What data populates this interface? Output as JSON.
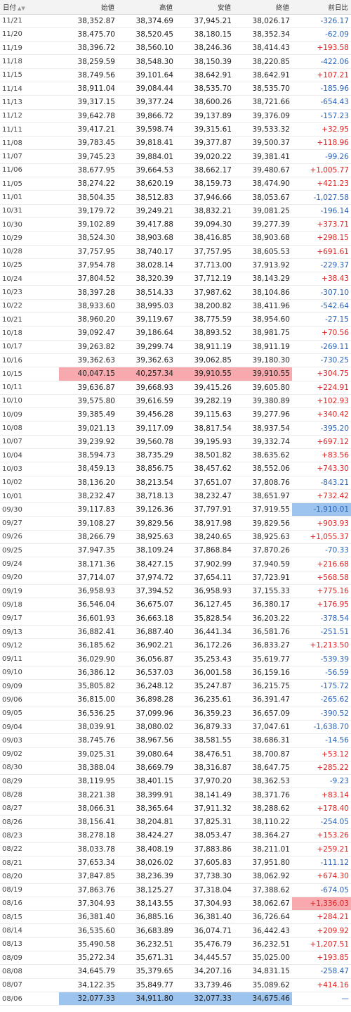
{
  "columns": [
    "日付",
    "始値",
    "高値",
    "安値",
    "終値",
    "前日比"
  ],
  "sort_icon": "sort-arrows-icon",
  "highlight_colors": {
    "high": "#f7a9ad",
    "low": "#9cc4ee"
  },
  "rows": [
    {
      "date": "11/21",
      "open": "38,352.87",
      "high": "38,374.69",
      "low": "37,945.21",
      "close": "38,026.17",
      "change": "-326.17"
    },
    {
      "date": "11/20",
      "open": "38,475.70",
      "high": "38,520.45",
      "low": "38,180.15",
      "close": "38,352.34",
      "change": "-62.09"
    },
    {
      "date": "11/19",
      "open": "38,396.72",
      "high": "38,560.10",
      "low": "38,246.36",
      "close": "38,414.43",
      "change": "+193.58"
    },
    {
      "date": "11/18",
      "open": "38,259.59",
      "high": "38,548.30",
      "low": "38,150.39",
      "close": "38,220.85",
      "change": "-422.06"
    },
    {
      "date": "11/15",
      "open": "38,749.56",
      "high": "39,101.64",
      "low": "38,642.91",
      "close": "38,642.91",
      "change": "+107.21"
    },
    {
      "date": "11/14",
      "open": "38,911.04",
      "high": "39,084.44",
      "low": "38,535.70",
      "close": "38,535.70",
      "change": "-185.96"
    },
    {
      "date": "11/13",
      "open": "39,317.15",
      "high": "39,377.24",
      "low": "38,600.26",
      "close": "38,721.66",
      "change": "-654.43"
    },
    {
      "date": "11/12",
      "open": "39,642.78",
      "high": "39,866.72",
      "low": "39,137.89",
      "close": "39,376.09",
      "change": "-157.23"
    },
    {
      "date": "11/11",
      "open": "39,417.21",
      "high": "39,598.74",
      "low": "39,315.61",
      "close": "39,533.32",
      "change": "+32.95"
    },
    {
      "date": "11/08",
      "open": "39,783.45",
      "high": "39,818.41",
      "low": "39,377.87",
      "close": "39,500.37",
      "change": "+118.96"
    },
    {
      "date": "11/07",
      "open": "39,745.23",
      "high": "39,884.01",
      "low": "39,020.22",
      "close": "39,381.41",
      "change": "-99.26"
    },
    {
      "date": "11/06",
      "open": "38,677.95",
      "high": "39,664.53",
      "low": "38,662.17",
      "close": "39,480.67",
      "change": "+1,005.77"
    },
    {
      "date": "11/05",
      "open": "38,274.22",
      "high": "38,620.19",
      "low": "38,159.73",
      "close": "38,474.90",
      "change": "+421.23"
    },
    {
      "date": "11/01",
      "open": "38,504.35",
      "high": "38,512.83",
      "low": "37,946.66",
      "close": "38,053.67",
      "change": "-1,027.58"
    },
    {
      "date": "10/31",
      "open": "39,179.72",
      "high": "39,249.21",
      "low": "38,832.21",
      "close": "39,081.25",
      "change": "-196.14"
    },
    {
      "date": "10/30",
      "open": "39,102.89",
      "high": "39,417.88",
      "low": "39,094.30",
      "close": "39,277.39",
      "change": "+373.71"
    },
    {
      "date": "10/29",
      "open": "38,524.30",
      "high": "38,903.68",
      "low": "38,416.85",
      "close": "38,903.68",
      "change": "+298.15"
    },
    {
      "date": "10/28",
      "open": "37,757.95",
      "high": "38,740.17",
      "low": "37,757.95",
      "close": "38,605.53",
      "change": "+691.61"
    },
    {
      "date": "10/25",
      "open": "37,954.78",
      "high": "38,028.14",
      "low": "37,713.00",
      "close": "37,913.92",
      "change": "-229.37"
    },
    {
      "date": "10/24",
      "open": "37,804.52",
      "high": "38,320.39",
      "low": "37,712.19",
      "close": "38,143.29",
      "change": "+38.43"
    },
    {
      "date": "10/23",
      "open": "38,397.28",
      "high": "38,514.33",
      "low": "37,987.62",
      "close": "38,104.86",
      "change": "-307.10"
    },
    {
      "date": "10/22",
      "open": "38,933.60",
      "high": "38,995.03",
      "low": "38,200.82",
      "close": "38,411.96",
      "change": "-542.64"
    },
    {
      "date": "10/21",
      "open": "38,960.20",
      "high": "39,119.67",
      "low": "38,775.59",
      "close": "38,954.60",
      "change": "-27.15"
    },
    {
      "date": "10/18",
      "open": "39,092.47",
      "high": "39,186.64",
      "low": "38,893.52",
      "close": "38,981.75",
      "change": "+70.56"
    },
    {
      "date": "10/17",
      "open": "39,263.82",
      "high": "39,299.74",
      "low": "38,911.19",
      "close": "38,911.19",
      "change": "-269.11"
    },
    {
      "date": "10/16",
      "open": "39,362.63",
      "high": "39,362.63",
      "low": "39,062.85",
      "close": "39,180.30",
      "change": "-730.25"
    },
    {
      "date": "10/15",
      "open": "40,047.15",
      "high": "40,257.34",
      "low": "39,910.55",
      "close": "39,910.55",
      "change": "+304.75",
      "mark_ohlc": "high"
    },
    {
      "date": "10/11",
      "open": "39,636.87",
      "high": "39,668.93",
      "low": "39,415.26",
      "close": "39,605.80",
      "change": "+224.91"
    },
    {
      "date": "10/10",
      "open": "39,575.80",
      "high": "39,616.59",
      "low": "39,282.19",
      "close": "39,380.89",
      "change": "+102.93"
    },
    {
      "date": "10/09",
      "open": "39,385.49",
      "high": "39,456.28",
      "low": "39,115.63",
      "close": "39,277.96",
      "change": "+340.42"
    },
    {
      "date": "10/08",
      "open": "39,021.13",
      "high": "39,117.09",
      "low": "38,817.54",
      "close": "38,937.54",
      "change": "-395.20"
    },
    {
      "date": "10/07",
      "open": "39,239.92",
      "high": "39,560.78",
      "low": "39,195.93",
      "close": "39,332.74",
      "change": "+697.12"
    },
    {
      "date": "10/04",
      "open": "38,594.73",
      "high": "38,735.29",
      "low": "38,501.82",
      "close": "38,635.62",
      "change": "+83.56"
    },
    {
      "date": "10/03",
      "open": "38,459.13",
      "high": "38,856.75",
      "low": "38,457.62",
      "close": "38,552.06",
      "change": "+743.30"
    },
    {
      "date": "10/02",
      "open": "38,136.20",
      "high": "38,213.54",
      "low": "37,651.07",
      "close": "37,808.76",
      "change": "-843.21"
    },
    {
      "date": "10/01",
      "open": "38,232.47",
      "high": "38,718.13",
      "low": "38,232.47",
      "close": "38,651.97",
      "change": "+732.42"
    },
    {
      "date": "09/30",
      "open": "39,117.83",
      "high": "39,126.36",
      "low": "37,797.91",
      "close": "37,919.55",
      "change": "-1,910.01",
      "mark_change": "low"
    },
    {
      "date": "09/27",
      "open": "39,108.27",
      "high": "39,829.56",
      "low": "38,917.98",
      "close": "39,829.56",
      "change": "+903.93"
    },
    {
      "date": "09/26",
      "open": "38,266.79",
      "high": "38,925.63",
      "low": "38,240.65",
      "close": "38,925.63",
      "change": "+1,055.37"
    },
    {
      "date": "09/25",
      "open": "37,947.35",
      "high": "38,109.24",
      "low": "37,868.84",
      "close": "37,870.26",
      "change": "-70.33"
    },
    {
      "date": "09/24",
      "open": "38,171.36",
      "high": "38,427.15",
      "low": "37,902.99",
      "close": "37,940.59",
      "change": "+216.68"
    },
    {
      "date": "09/20",
      "open": "37,714.07",
      "high": "37,974.72",
      "low": "37,654.11",
      "close": "37,723.91",
      "change": "+568.58"
    },
    {
      "date": "09/19",
      "open": "36,958.93",
      "high": "37,394.52",
      "low": "36,958.93",
      "close": "37,155.33",
      "change": "+775.16"
    },
    {
      "date": "09/18",
      "open": "36,546.04",
      "high": "36,675.07",
      "low": "36,127.45",
      "close": "36,380.17",
      "change": "+176.95"
    },
    {
      "date": "09/17",
      "open": "36,601.93",
      "high": "36,663.18",
      "low": "35,828.54",
      "close": "36,203.22",
      "change": "-378.54"
    },
    {
      "date": "09/13",
      "open": "36,882.41",
      "high": "36,887.40",
      "low": "36,441.34",
      "close": "36,581.76",
      "change": "-251.51"
    },
    {
      "date": "09/12",
      "open": "36,185.62",
      "high": "36,902.21",
      "low": "36,172.26",
      "close": "36,833.27",
      "change": "+1,213.50"
    },
    {
      "date": "09/11",
      "open": "36,029.90",
      "high": "36,056.87",
      "low": "35,253.43",
      "close": "35,619.77",
      "change": "-539.39"
    },
    {
      "date": "09/10",
      "open": "36,386.12",
      "high": "36,537.03",
      "low": "36,001.58",
      "close": "36,159.16",
      "change": "-56.59"
    },
    {
      "date": "09/09",
      "open": "35,805.82",
      "high": "36,248.12",
      "low": "35,247.87",
      "close": "36,215.75",
      "change": "-175.72"
    },
    {
      "date": "09/06",
      "open": "36,815.00",
      "high": "36,898.28",
      "low": "36,235.61",
      "close": "36,391.47",
      "change": "-265.62"
    },
    {
      "date": "09/05",
      "open": "36,536.25",
      "high": "37,099.96",
      "low": "36,359.23",
      "close": "36,657.09",
      "change": "-390.52"
    },
    {
      "date": "09/04",
      "open": "38,039.91",
      "high": "38,080.02",
      "low": "36,879.33",
      "close": "37,047.61",
      "change": "-1,638.70"
    },
    {
      "date": "09/03",
      "open": "38,745.76",
      "high": "38,967.56",
      "low": "38,581.55",
      "close": "38,686.31",
      "change": "-14.56"
    },
    {
      "date": "09/02",
      "open": "39,025.31",
      "high": "39,080.64",
      "low": "38,476.51",
      "close": "38,700.87",
      "change": "+53.12"
    },
    {
      "date": "08/30",
      "open": "38,388.04",
      "high": "38,669.79",
      "low": "38,316.87",
      "close": "38,647.75",
      "change": "+285.22"
    },
    {
      "date": "08/29",
      "open": "38,119.95",
      "high": "38,401.15",
      "low": "37,970.20",
      "close": "38,362.53",
      "change": "-9.23"
    },
    {
      "date": "08/28",
      "open": "38,221.38",
      "high": "38,399.91",
      "low": "38,141.49",
      "close": "38,371.76",
      "change": "+83.14"
    },
    {
      "date": "08/27",
      "open": "38,066.31",
      "high": "38,365.64",
      "low": "37,911.32",
      "close": "38,288.62",
      "change": "+178.40"
    },
    {
      "date": "08/26",
      "open": "38,156.41",
      "high": "38,204.81",
      "low": "37,825.31",
      "close": "38,110.22",
      "change": "-254.05"
    },
    {
      "date": "08/23",
      "open": "38,278.18",
      "high": "38,424.27",
      "low": "38,053.47",
      "close": "38,364.27",
      "change": "+153.26"
    },
    {
      "date": "08/22",
      "open": "38,033.78",
      "high": "38,408.19",
      "low": "37,883.86",
      "close": "38,211.01",
      "change": "+259.21"
    },
    {
      "date": "08/21",
      "open": "37,653.34",
      "high": "38,026.02",
      "low": "37,605.83",
      "close": "37,951.80",
      "change": "-111.12"
    },
    {
      "date": "08/20",
      "open": "37,847.85",
      "high": "38,236.39",
      "low": "37,738.30",
      "close": "38,062.92",
      "change": "+674.30"
    },
    {
      "date": "08/19",
      "open": "37,863.76",
      "high": "38,125.27",
      "low": "37,318.04",
      "close": "37,388.62",
      "change": "-674.05"
    },
    {
      "date": "08/16",
      "open": "37,304.93",
      "high": "38,143.55",
      "low": "37,304.93",
      "close": "38,062.67",
      "change": "+1,336.03",
      "mark_change": "high"
    },
    {
      "date": "08/15",
      "open": "36,381.40",
      "high": "36,885.16",
      "low": "36,381.40",
      "close": "36,726.64",
      "change": "+284.21"
    },
    {
      "date": "08/14",
      "open": "36,535.60",
      "high": "36,683.89",
      "low": "36,074.71",
      "close": "36,442.43",
      "change": "+209.92"
    },
    {
      "date": "08/13",
      "open": "35,490.58",
      "high": "36,232.51",
      "low": "35,476.79",
      "close": "36,232.51",
      "change": "+1,207.51"
    },
    {
      "date": "08/09",
      "open": "35,272.34",
      "high": "35,671.31",
      "low": "34,445.57",
      "close": "35,025.00",
      "change": "+193.85"
    },
    {
      "date": "08/08",
      "open": "34,645.79",
      "high": "35,379.65",
      "low": "34,207.16",
      "close": "34,831.15",
      "change": "-258.47"
    },
    {
      "date": "08/07",
      "open": "34,122.35",
      "high": "35,849.77",
      "low": "33,739.46",
      "close": "35,089.62",
      "change": "+414.16"
    },
    {
      "date": "08/06",
      "open": "32,077.33",
      "high": "34,911.80",
      "low": "32,077.33",
      "close": "34,675.46",
      "change": "—",
      "mark_ohlc": "low"
    }
  ]
}
